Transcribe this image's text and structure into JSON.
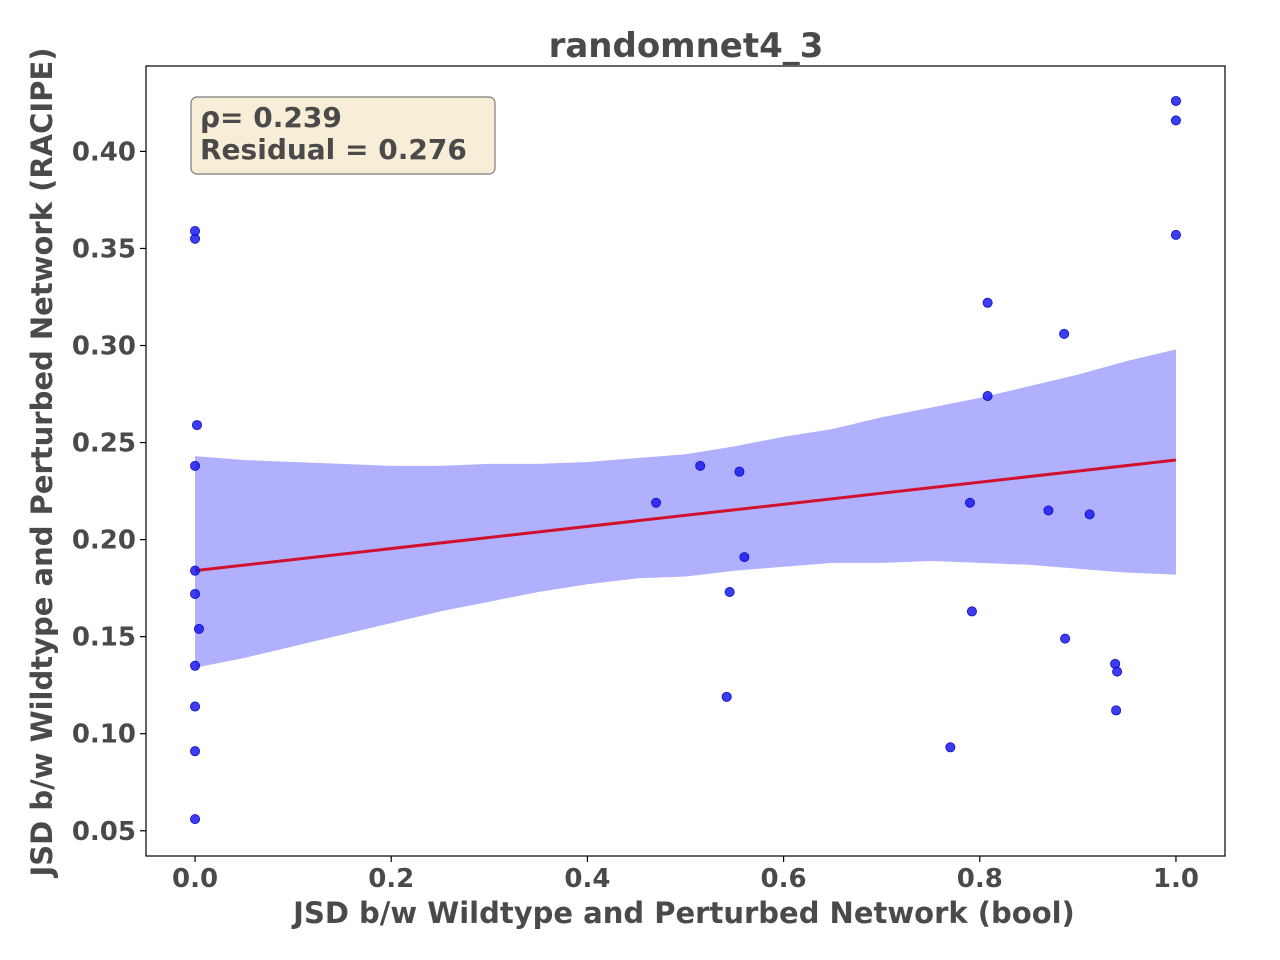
{
  "chart_data": {
    "type": "scatter",
    "title": "randomnet4_3",
    "xlabel": "JSD b/w Wildtype and Perturbed Network (bool)",
    "ylabel": "JSD b/w Wildtype and Perturbed Network (RACIPE)",
    "xlim": [
      -0.05,
      1.05
    ],
    "ylim": [
      0.037,
      0.444
    ],
    "x_ticks": [
      "0.0",
      "0.2",
      "0.4",
      "0.6",
      "0.8",
      "1.0"
    ],
    "y_ticks": [
      "0.05",
      "0.10",
      "0.15",
      "0.20",
      "0.25",
      "0.30",
      "0.35",
      "0.40"
    ],
    "grid": false,
    "annotation": {
      "lines": [
        "ρ= 0.239",
        "Residual = 0.276"
      ],
      "placement": "top-left"
    },
    "points": [
      {
        "x": 0.0,
        "y": 0.359
      },
      {
        "x": 0.0,
        "y": 0.355
      },
      {
        "x": 0.002,
        "y": 0.259
      },
      {
        "x": 0.0,
        "y": 0.238
      },
      {
        "x": 0.0,
        "y": 0.184
      },
      {
        "x": 0.0,
        "y": 0.172
      },
      {
        "x": 0.004,
        "y": 0.154
      },
      {
        "x": 0.0,
        "y": 0.135
      },
      {
        "x": 0.0,
        "y": 0.114
      },
      {
        "x": 0.0,
        "y": 0.091
      },
      {
        "x": 0.0,
        "y": 0.056
      },
      {
        "x": 0.47,
        "y": 0.219
      },
      {
        "x": 0.515,
        "y": 0.238
      },
      {
        "x": 0.555,
        "y": 0.235
      },
      {
        "x": 0.56,
        "y": 0.191
      },
      {
        "x": 0.545,
        "y": 0.173
      },
      {
        "x": 0.542,
        "y": 0.119
      },
      {
        "x": 0.808,
        "y": 0.322
      },
      {
        "x": 0.808,
        "y": 0.274
      },
      {
        "x": 0.79,
        "y": 0.219
      },
      {
        "x": 0.792,
        "y": 0.163
      },
      {
        "x": 0.77,
        "y": 0.093
      },
      {
        "x": 0.886,
        "y": 0.306
      },
      {
        "x": 0.87,
        "y": 0.215
      },
      {
        "x": 0.912,
        "y": 0.213
      },
      {
        "x": 0.887,
        "y": 0.149
      },
      {
        "x": 0.938,
        "y": 0.136
      },
      {
        "x": 0.94,
        "y": 0.132
      },
      {
        "x": 0.939,
        "y": 0.112
      },
      {
        "x": 1.0,
        "y": 0.426
      },
      {
        "x": 1.0,
        "y": 0.416
      },
      {
        "x": 1.0,
        "y": 0.357
      }
    ],
    "regression": {
      "x": [
        0.0,
        1.0
      ],
      "y": [
        0.184,
        0.241
      ],
      "color": "#d0102c"
    },
    "confidence_band": {
      "x": [
        0.0,
        0.05,
        0.1,
        0.15,
        0.2,
        0.25,
        0.3,
        0.35,
        0.4,
        0.45,
        0.5,
        0.55,
        0.6,
        0.65,
        0.7,
        0.75,
        0.8,
        0.85,
        0.9,
        0.95,
        1.0
      ],
      "upper": [
        0.243,
        0.241,
        0.24,
        0.239,
        0.238,
        0.238,
        0.239,
        0.239,
        0.24,
        0.242,
        0.244,
        0.248,
        0.253,
        0.257,
        0.263,
        0.268,
        0.273,
        0.279,
        0.285,
        0.292,
        0.298
      ],
      "lower": [
        0.134,
        0.139,
        0.145,
        0.151,
        0.157,
        0.163,
        0.168,
        0.173,
        0.177,
        0.18,
        0.181,
        0.184,
        0.186,
        0.188,
        0.188,
        0.189,
        0.188,
        0.187,
        0.185,
        0.183,
        0.182
      ],
      "color": "#b0b0ff"
    },
    "point_color": "#1a1aee"
  }
}
